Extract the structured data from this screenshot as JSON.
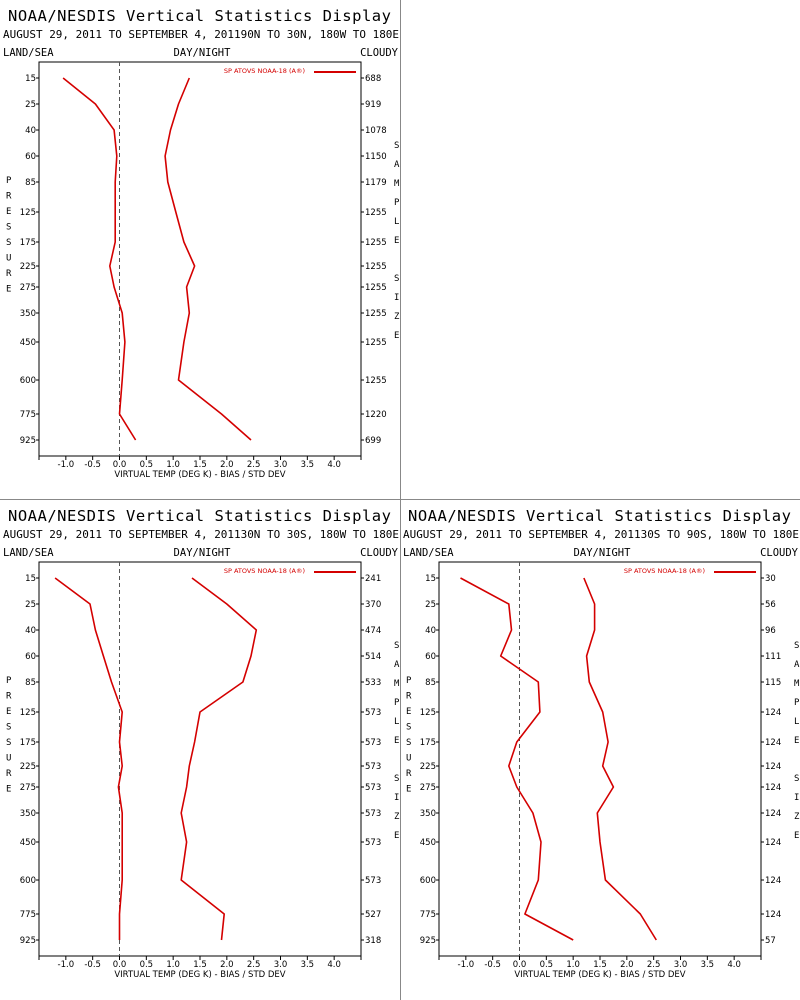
{
  "colors": {
    "series": "#d40000",
    "frame": "#000000",
    "zero_line": "#555555",
    "divider": "#888888"
  },
  "panels": [
    {
      "title": "NOAA/NESDIS Vertical Statistics Display",
      "subtitle": "AUGUST 29, 2011 TO SEPTEMBER 4, 201190N TO 30N, 180W TO 180E",
      "left_header": "LAND/SEA",
      "center_header": "DAY/NIGHT",
      "right_header": "CLOUDY",
      "legend": "SP ATOVS NOAA-18 (A®)",
      "ylabel": "PRESSURE",
      "right_label": "SAMPLE SIZE",
      "xlabel": "VIRTUAL TEMP (DEG K) - BIAS / STD DEV",
      "pressure_labels": [
        "15",
        "25",
        "40",
        "60",
        "85",
        "125",
        "175",
        "225",
        "275",
        "350",
        "450",
        "600",
        "775",
        "925"
      ],
      "sample_sizes": [
        "688",
        "919",
        "1078",
        "1150",
        "1179",
        "1255",
        "1255",
        "1255",
        "1255",
        "1255",
        "1255",
        "1255",
        "1220",
        "699"
      ],
      "x_ticks": [
        "-1.0",
        "-0.5",
        "0.0",
        "0.5",
        "1.0",
        "1.5",
        "2.0",
        "2.5",
        "3.0",
        "3.5",
        "4.0"
      ]
    },
    {
      "title": "NOAA/NESDIS Vertical Statistics Display",
      "subtitle": "AUGUST 29, 2011 TO SEPTEMBER 4, 201130N TO 30S, 180W TO 180E",
      "left_header": "LAND/SEA",
      "center_header": "DAY/NIGHT",
      "right_header": "CLOUDY",
      "legend": "SP ATOVS NOAA-18 (A®)",
      "ylabel": "PRESSURE",
      "right_label": "SAMPLE SIZE",
      "xlabel": "VIRTUAL TEMP (DEG K) - BIAS / STD DEV",
      "pressure_labels": [
        "15",
        "25",
        "40",
        "60",
        "85",
        "125",
        "175",
        "225",
        "275",
        "350",
        "450",
        "600",
        "775",
        "925"
      ],
      "sample_sizes": [
        "241",
        "370",
        "474",
        "514",
        "533",
        "573",
        "573",
        "573",
        "573",
        "573",
        "573",
        "573",
        "527",
        "318"
      ],
      "x_ticks": [
        "-1.0",
        "-0.5",
        "0.0",
        "0.5",
        "1.0",
        "1.5",
        "2.0",
        "2.5",
        "3.0",
        "3.5",
        "4.0"
      ]
    },
    {
      "title": "NOAA/NESDIS Vertical Statistics Display",
      "subtitle": "AUGUST 29, 2011 TO SEPTEMBER 4, 201130S TO 90S, 180W TO 180E",
      "left_header": "LAND/SEA",
      "center_header": "DAY/NIGHT",
      "right_header": "CLOUDY",
      "legend": "SP ATOVS NOAA-18 (A®)",
      "ylabel": "PRESSURE",
      "right_label": "SAMPLE SIZE",
      "xlabel": "VIRTUAL TEMP (DEG K) - BIAS / STD DEV",
      "pressure_labels": [
        "15",
        "25",
        "40",
        "60",
        "85",
        "125",
        "175",
        "225",
        "275",
        "350",
        "450",
        "600",
        "775",
        "925"
      ],
      "sample_sizes": [
        "30",
        "56",
        "96",
        "111",
        "115",
        "124",
        "124",
        "124",
        "124",
        "124",
        "124",
        "124",
        "124",
        "57"
      ],
      "x_ticks": [
        "-1.0",
        "-0.5",
        "0.0",
        "0.5",
        "1.0",
        "1.5",
        "2.0",
        "2.5",
        "3.0",
        "3.5",
        "4.0"
      ]
    }
  ],
  "chart_data": [
    {
      "type": "line",
      "title": "NOAA/NESDIS Vertical Statistics Display",
      "xlabel": "VIRTUAL TEMP (DEG K) - BIAS / STD DEV",
      "ylabel": "PRESSURE",
      "xlim": [
        -1.5,
        4.5
      ],
      "pressure": [
        15,
        25,
        40,
        60,
        85,
        125,
        175,
        225,
        275,
        350,
        450,
        600,
        775,
        925
      ],
      "series": [
        {
          "name": "SP ATOVS NOAA-18 (A®)",
          "role": "bias",
          "values": [
            -1.05,
            -0.45,
            -0.1,
            -0.05,
            -0.08,
            -0.08,
            -0.08,
            -0.18,
            -0.1,
            0.05,
            0.1,
            0.05,
            0.0,
            0.3
          ]
        },
        {
          "name": "SP ATOVS NOAA-18 (A®)",
          "role": "std_dev",
          "values": [
            1.3,
            1.1,
            0.95,
            0.85,
            0.9,
            1.05,
            1.2,
            1.4,
            1.25,
            1.3,
            1.2,
            1.1,
            1.9,
            2.45
          ]
        }
      ]
    },
    {
      "type": "line",
      "title": "NOAA/NESDIS Vertical Statistics Display",
      "xlabel": "VIRTUAL TEMP (DEG K) - BIAS / STD DEV",
      "ylabel": "PRESSURE",
      "xlim": [
        -1.5,
        4.5
      ],
      "pressure": [
        15,
        25,
        40,
        60,
        85,
        125,
        175,
        225,
        275,
        350,
        450,
        600,
        775,
        925
      ],
      "series": [
        {
          "name": "SP ATOVS NOAA-18 (A®)",
          "role": "bias",
          "values": [
            -1.2,
            -0.55,
            -0.45,
            -0.3,
            -0.15,
            0.05,
            0.0,
            0.05,
            -0.02,
            0.05,
            0.05,
            0.05,
            0.0,
            0.0
          ]
        },
        {
          "name": "SP ATOVS NOAA-18 (A®)",
          "role": "std_dev",
          "values": [
            1.35,
            2.0,
            2.55,
            2.45,
            2.3,
            1.5,
            1.4,
            1.3,
            1.25,
            1.15,
            1.25,
            1.15,
            1.95,
            1.9
          ]
        }
      ]
    },
    {
      "type": "line",
      "title": "NOAA/NESDIS Vertical Statistics Display",
      "xlabel": "VIRTUAL TEMP (DEG K) - BIAS / STD DEV",
      "ylabel": "PRESSURE",
      "xlim": [
        -1.5,
        4.5
      ],
      "pressure": [
        15,
        25,
        40,
        60,
        85,
        125,
        175,
        225,
        275,
        350,
        450,
        600,
        775,
        925
      ],
      "series": [
        {
          "name": "SP ATOVS NOAA-18 (A®)",
          "role": "bias",
          "values": [
            -1.1,
            -0.2,
            -0.15,
            -0.35,
            0.35,
            0.38,
            -0.05,
            -0.2,
            -0.05,
            0.25,
            0.4,
            0.35,
            0.1,
            1.0
          ]
        },
        {
          "name": "SP ATOVS NOAA-18 (A®)",
          "role": "std_dev",
          "values": [
            1.2,
            1.4,
            1.4,
            1.25,
            1.3,
            1.55,
            1.65,
            1.55,
            1.75,
            1.45,
            1.5,
            1.6,
            2.25,
            2.55
          ]
        }
      ]
    }
  ]
}
